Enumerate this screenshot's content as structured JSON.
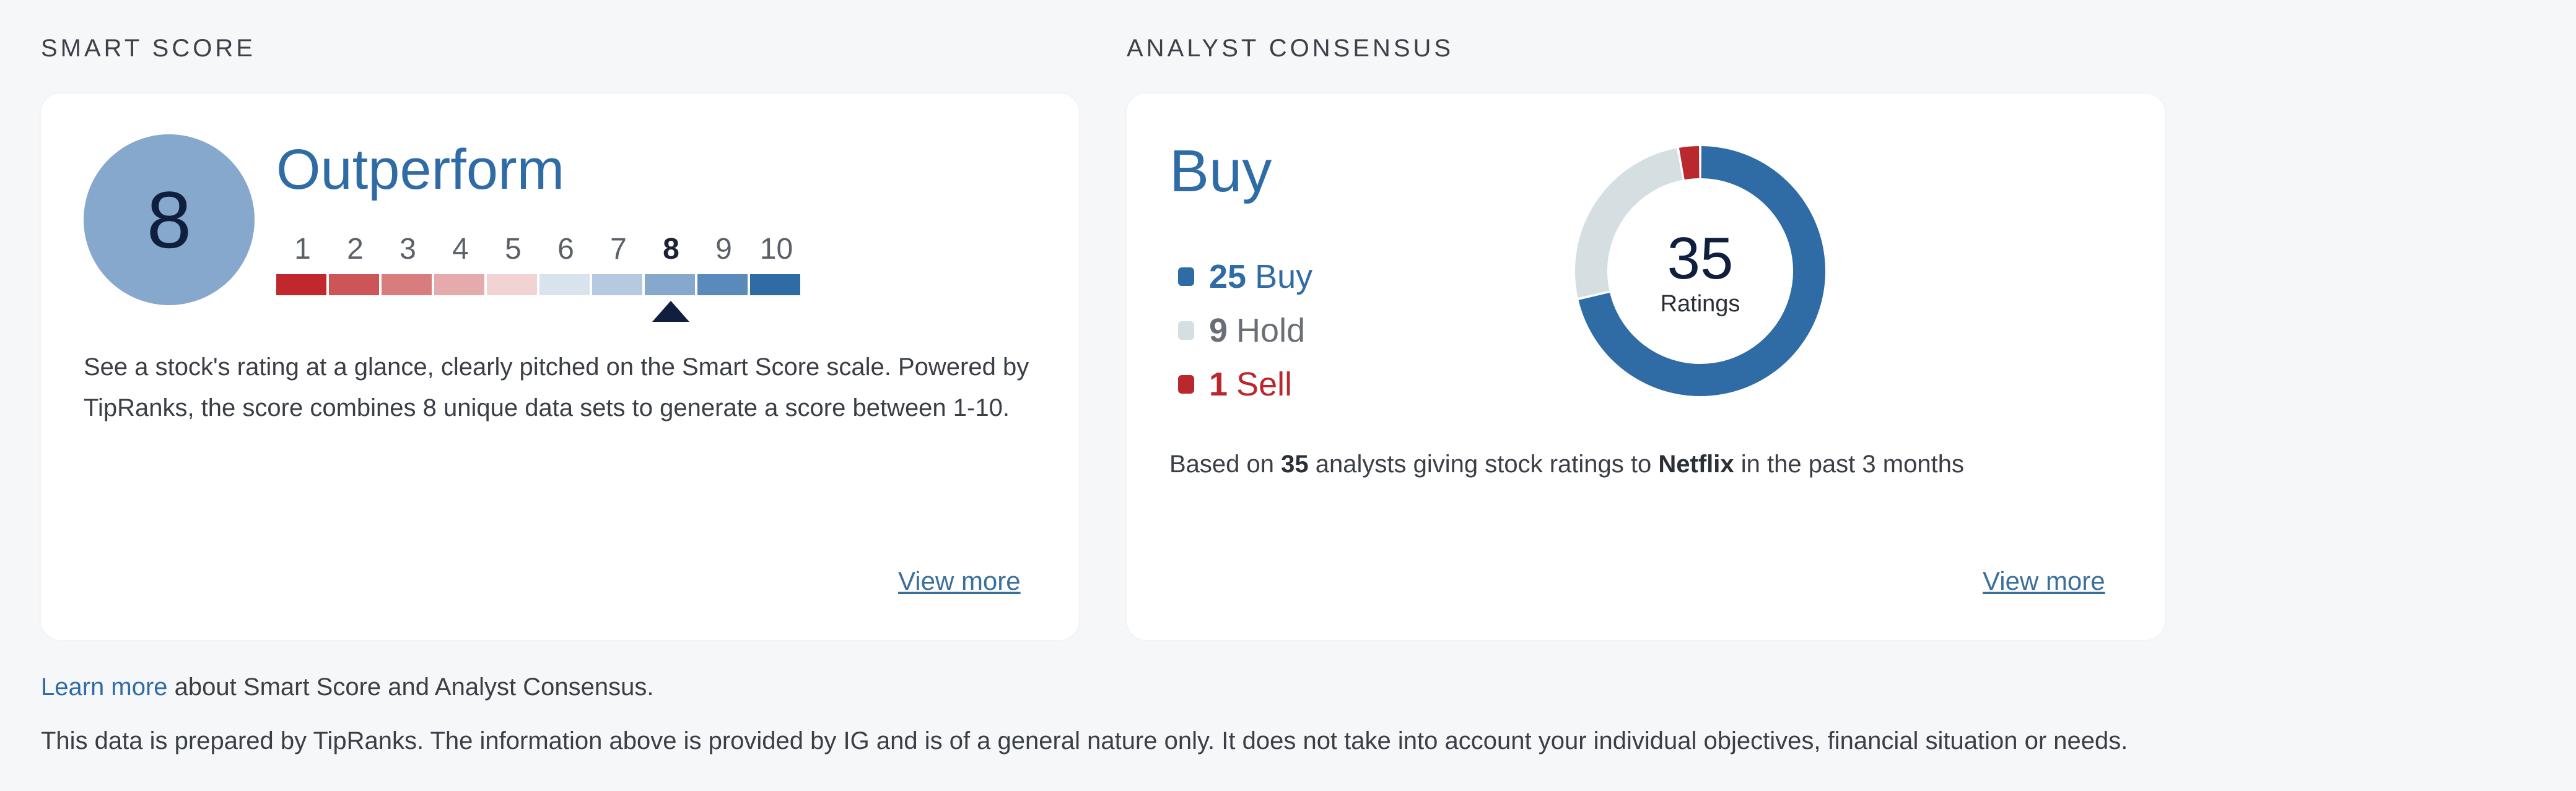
{
  "smart_score": {
    "section_label": "SMART SCORE",
    "score": "8",
    "rating": "Outperform",
    "scale": [
      "1",
      "2",
      "3",
      "4",
      "5",
      "6",
      "7",
      "8",
      "9",
      "10"
    ],
    "active_value": 8,
    "scale_colors": [
      "#c0282d",
      "#cc5558",
      "#d97c7e",
      "#e5aaab",
      "#f1d3d4",
      "#d9e3ee",
      "#b5c9df",
      "#86a8cc",
      "#5a89bb",
      "#2f6ca6"
    ],
    "circle_color": "#86a8cc",
    "description": "See a stock's rating at a glance, clearly pitched on the Smart Score scale. Powered by TipRanks, the score combines 8 unique data sets to generate a score between 1-10.",
    "view_more": "View more"
  },
  "analyst_consensus": {
    "section_label": "ANALYST CONSENSUS",
    "consensus": "Buy",
    "ratings": [
      {
        "count": "25",
        "label": "Buy",
        "value": 25,
        "color": "#2f6ca6"
      },
      {
        "count": "9",
        "label": "Hold",
        "value": 9,
        "color": "#d5dfe2"
      },
      {
        "count": "1",
        "label": "Sell",
        "value": 1,
        "color": "#b8282d"
      }
    ],
    "total": "35",
    "total_label": "Ratings",
    "basis_prefix": "Based on ",
    "basis_count": "35",
    "basis_middle": " analysts giving stock ratings to ",
    "basis_company": "Netflix",
    "basis_suffix": " in the past 3 months",
    "view_more": "View more"
  },
  "footer": {
    "learn_more_link": "Learn more",
    "learn_more_rest": " about Smart Score and Analyst Consensus.",
    "disclaimer": "This data is prepared by TipRanks. The information above is provided by IG and is of a general nature only. It does not take into account your individual objectives, financial situation or needs."
  }
}
